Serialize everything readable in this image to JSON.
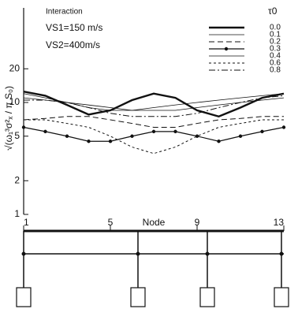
{
  "chart_data": {
    "type": "line",
    "annotations": [
      "Interaction",
      "VS1=150 m/s",
      "VS2=400m/s"
    ],
    "ylabel": "√(ω₁³σ²ₓ / π S₀)",
    "xlabel": "Node",
    "legend_title": "τ0",
    "legend": "upper right",
    "log_y": true,
    "xlim": [
      1,
      13
    ],
    "xticks": [
      1,
      5,
      9,
      13
    ],
    "x": [
      1,
      2,
      3,
      4,
      5,
      6,
      7,
      8,
      9,
      10,
      11,
      12,
      13
    ],
    "ylim": [
      1,
      70
    ],
    "yticks": [
      1,
      2,
      5,
      10,
      20
    ],
    "series": [
      {
        "name": "0.0",
        "color": "#111111",
        "width": 2.4,
        "dash": "none",
        "marker": false,
        "values": [
          12.5,
          11.5,
          9.5,
          7.8,
          8.5,
          10.5,
          12,
          11,
          8.5,
          7.5,
          9,
          11,
          12
        ]
      },
      {
        "name": "0.1",
        "color": "#111111",
        "width": 0.8,
        "dash": "none",
        "marker": false,
        "values": [
          12,
          11,
          10,
          9,
          8.5,
          8.5,
          9,
          9.5,
          10,
          10.5,
          11,
          11.5,
          12
        ]
      },
      {
        "name": "0.2",
        "color": "#111111",
        "width": 1,
        "dash": "7 4",
        "marker": false,
        "values": [
          7,
          7.2,
          7.5,
          7.5,
          7,
          6.5,
          6,
          6,
          6.5,
          7,
          7.2,
          7.5,
          7.5
        ]
      },
      {
        "name": "0.3",
        "color": "#111111",
        "width": 1.2,
        "dash": "none",
        "marker": true,
        "values": [
          6,
          5.5,
          5,
          4.5,
          4.5,
          5,
          5.5,
          5.5,
          5,
          4.5,
          5,
          5.5,
          6
        ]
      },
      {
        "name": "0.4",
        "color": "#111111",
        "width": 0.8,
        "dash": "none",
        "marker": false,
        "values": [
          11,
          10.5,
          10,
          9.5,
          9,
          8.5,
          8.5,
          8.5,
          9,
          9.5,
          10,
          10.5,
          11
        ]
      },
      {
        "name": "0.6",
        "color": "#111111",
        "width": 1,
        "dash": "3 3",
        "marker": false,
        "values": [
          7,
          7,
          6.5,
          6,
          5,
          4,
          3.5,
          4,
          5,
          6,
          6.5,
          7,
          7
        ]
      },
      {
        "name": "0.8",
        "color": "#111111",
        "width": 1,
        "dash": "8 3 2 3",
        "marker": false,
        "values": [
          10.5,
          10.5,
          10,
          9,
          8,
          7.5,
          7.5,
          7.5,
          8,
          9,
          10,
          11,
          11.5
        ]
      }
    ]
  }
}
